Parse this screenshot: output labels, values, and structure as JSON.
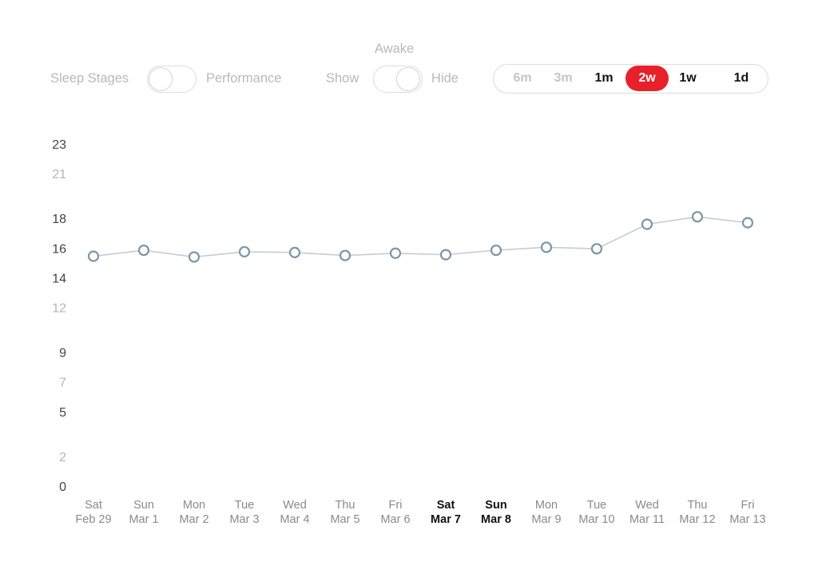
{
  "controls": {
    "sleep_stages_label": "Sleep Stages",
    "performance_label": "Performance",
    "awake_label": "Awake",
    "show_label": "Show",
    "hide_label": "Hide",
    "range_buttons": [
      {
        "label": "6m",
        "state": "muted"
      },
      {
        "label": "3m",
        "state": "muted"
      },
      {
        "label": "1m",
        "state": "normal"
      },
      {
        "label": "2w",
        "state": "active"
      },
      {
        "label": "1w",
        "state": "normal"
      },
      {
        "label": "1d",
        "state": "normal"
      }
    ],
    "active_color": "#e8202a"
  },
  "chart_data": {
    "type": "line",
    "title": "",
    "xlabel": "",
    "ylabel": "",
    "y_ticks": [
      {
        "label": "0",
        "value": 0,
        "bold": true
      },
      {
        "label": "2",
        "value": 2,
        "bold": false
      },
      {
        "label": "5",
        "value": 5,
        "bold": true
      },
      {
        "label": "7",
        "value": 7,
        "bold": false
      },
      {
        "label": "9",
        "value": 9,
        "bold": true
      },
      {
        "label": "12",
        "value": 12,
        "bold": false
      },
      {
        "label": "14",
        "value": 14,
        "bold": true
      },
      {
        "label": "16",
        "value": 16,
        "bold": true
      },
      {
        "label": "18",
        "value": 18,
        "bold": true
      },
      {
        "label": "21",
        "value": 21,
        "bold": false
      },
      {
        "label": "23",
        "value": 23,
        "bold": true
      }
    ],
    "ylim": [
      0,
      23
    ],
    "categories": [
      {
        "day": "Sat",
        "date": "Feb 29",
        "bold": false
      },
      {
        "day": "Sun",
        "date": "Mar 1",
        "bold": false
      },
      {
        "day": "Mon",
        "date": "Mar 2",
        "bold": false
      },
      {
        "day": "Tue",
        "date": "Mar 3",
        "bold": false
      },
      {
        "day": "Wed",
        "date": "Mar 4",
        "bold": false
      },
      {
        "day": "Thu",
        "date": "Mar 5",
        "bold": false
      },
      {
        "day": "Fri",
        "date": "Mar 6",
        "bold": false
      },
      {
        "day": "Sat",
        "date": "Mar 7",
        "bold": true
      },
      {
        "day": "Sun",
        "date": "Mar 8",
        "bold": true
      },
      {
        "day": "Mon",
        "date": "Mar 9",
        "bold": false
      },
      {
        "day": "Tue",
        "date": "Mar 10",
        "bold": false
      },
      {
        "day": "Wed",
        "date": "Mar 11",
        "bold": false
      },
      {
        "day": "Thu",
        "date": "Mar 12",
        "bold": false
      },
      {
        "day": "Fri",
        "date": "Mar 13",
        "bold": false
      }
    ],
    "series": [
      {
        "values": [
          15.45,
          15.85,
          15.4,
          15.75,
          15.7,
          15.5,
          15.65,
          15.55,
          15.85,
          16.05,
          15.95,
          17.6,
          18.1,
          17.7
        ]
      }
    ],
    "line_color": "#c4ccd3",
    "marker_color": "#7d95a8",
    "grid": false
  }
}
